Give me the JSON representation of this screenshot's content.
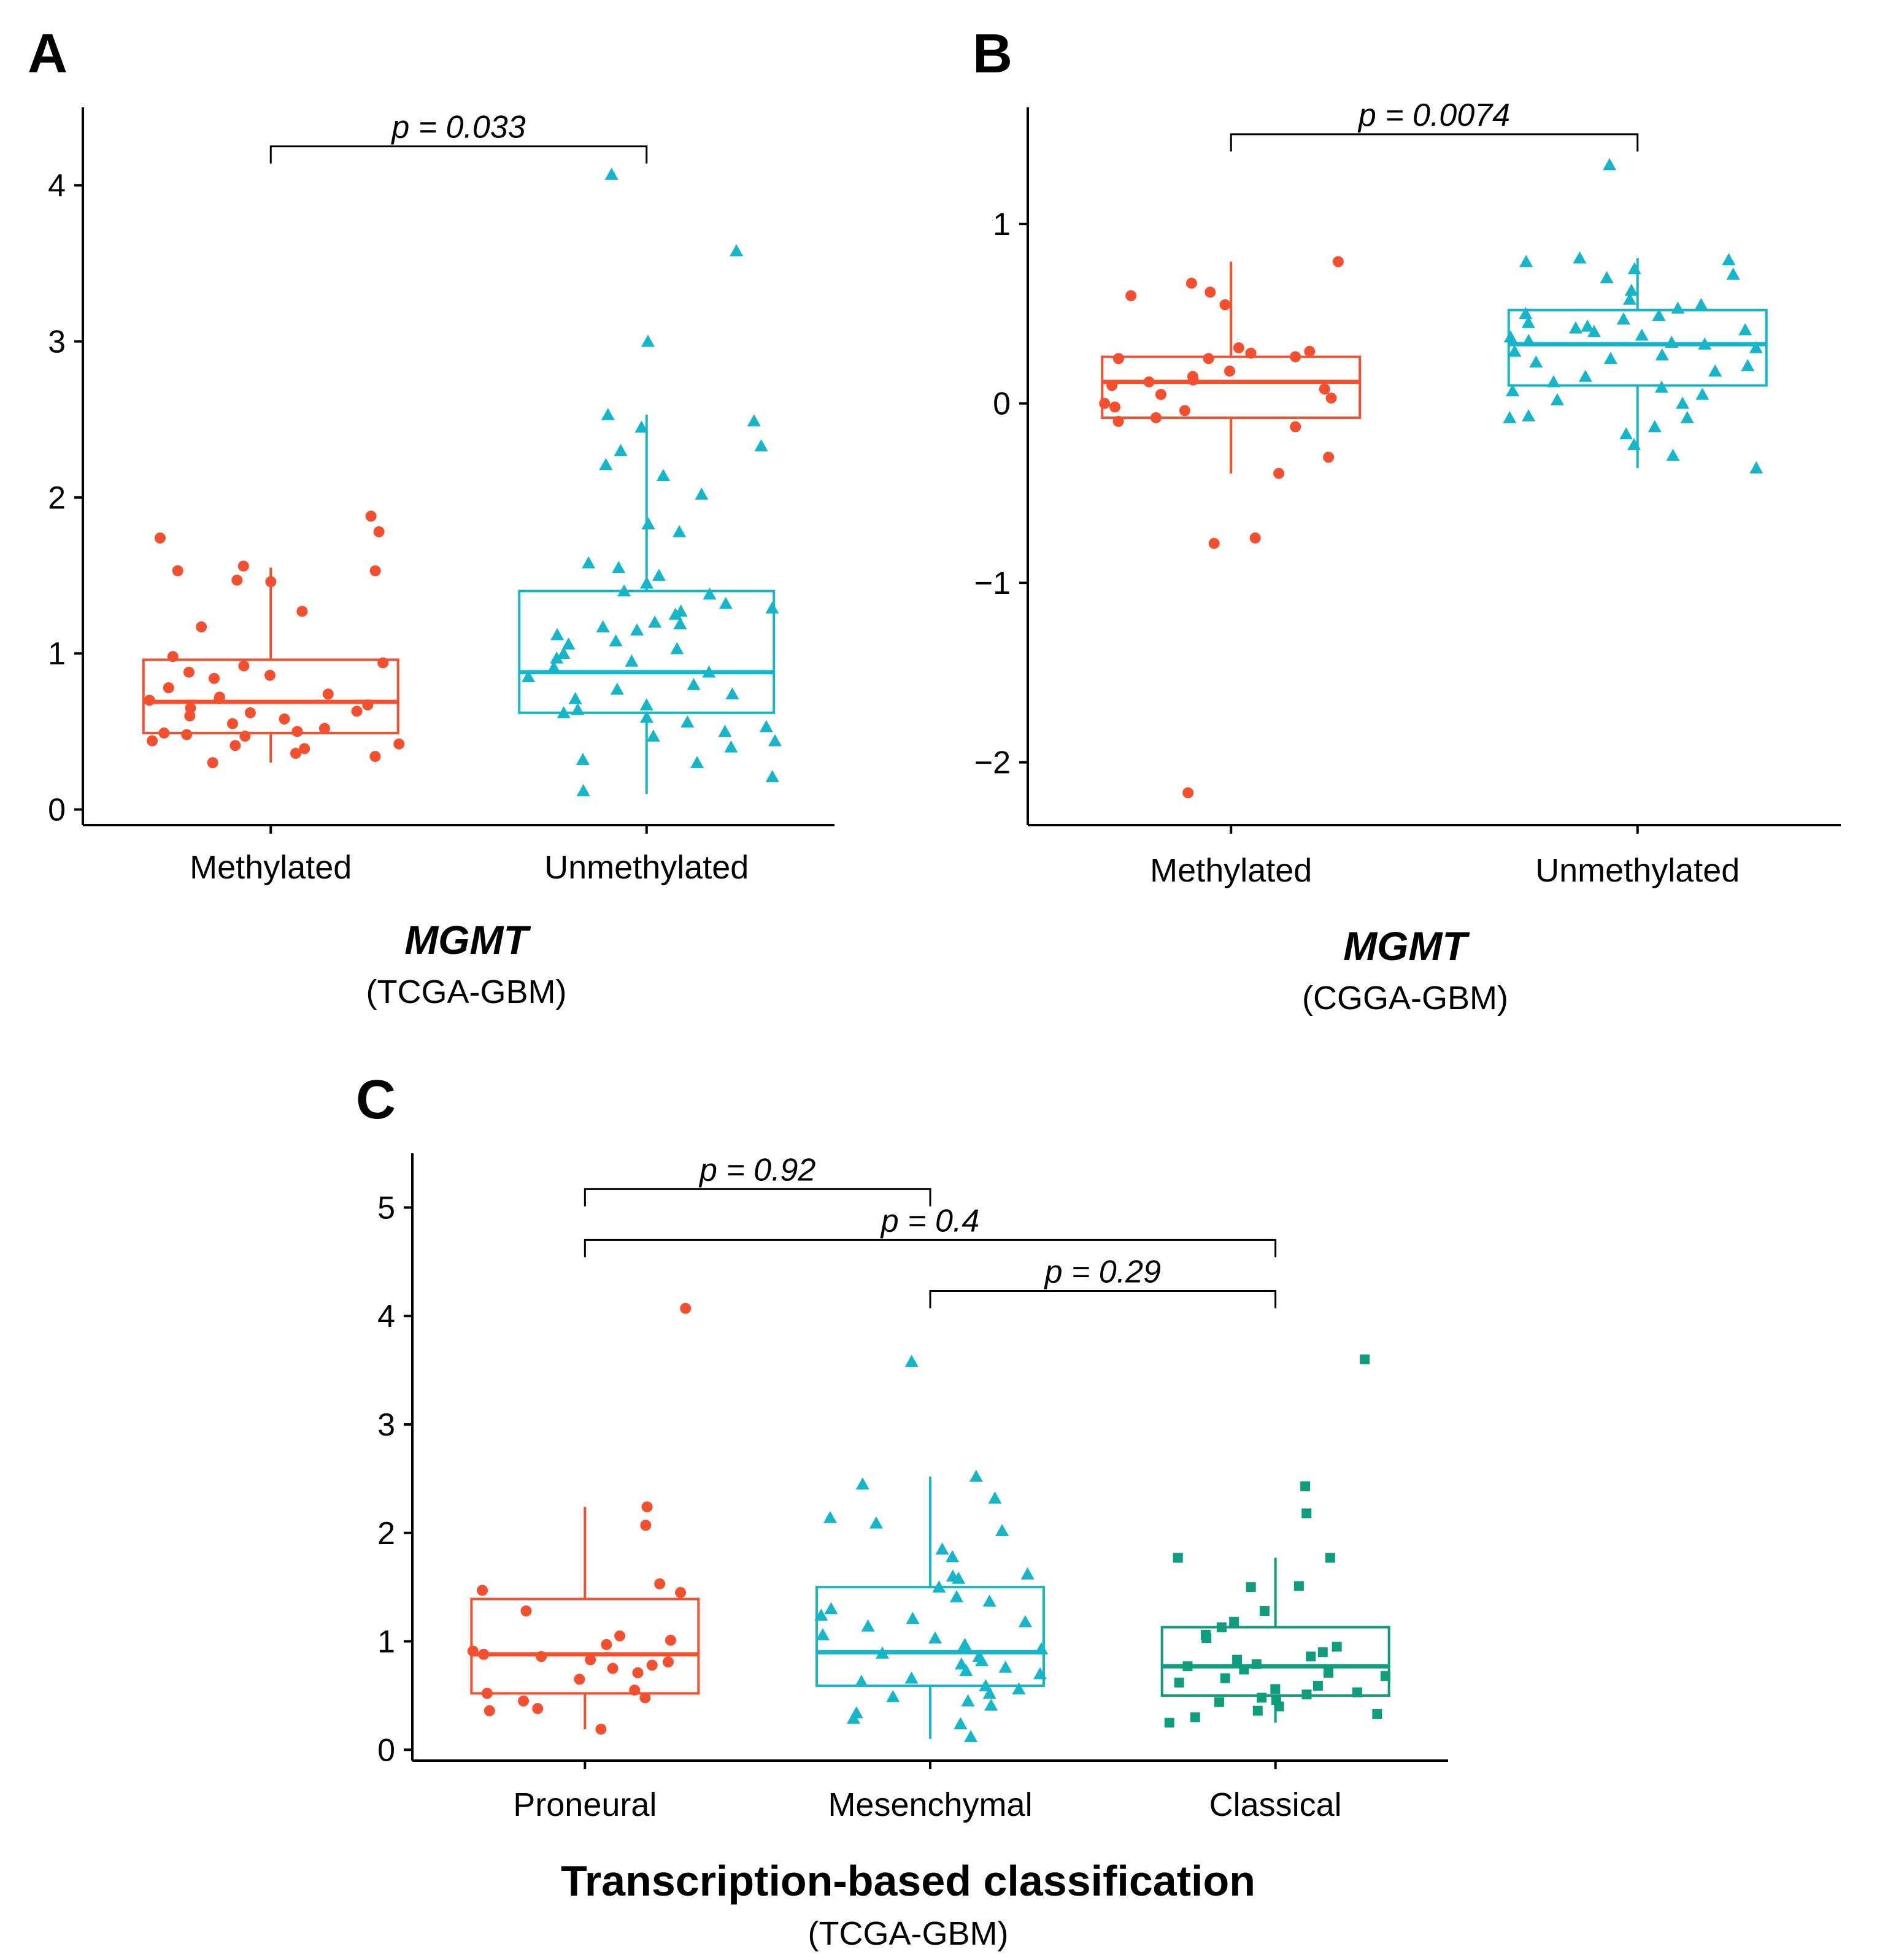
{
  "figure": {
    "panels": [
      "A",
      "B",
      "C"
    ],
    "colors": {
      "red": "#F4502F",
      "cyan": "#15B6C9",
      "teal": "#0E9E7E",
      "axis": "#000000"
    }
  },
  "chart_data": [
    {
      "id": "A",
      "panel_label": "A",
      "type": "box",
      "title_italic": "MGMT",
      "subtitle": "(TCGA-GBM)",
      "xlabel": "",
      "ylabel": "",
      "categories": [
        "Methylated",
        "Unmethylated"
      ],
      "ylim": [
        -0.1,
        4.5
      ],
      "yticks": [
        0,
        1,
        2,
        3,
        4
      ],
      "colors": [
        "#F4502F",
        "#15B6C9"
      ],
      "shapes": [
        "circle",
        "triangle"
      ],
      "boxes": [
        {
          "category": "Methylated",
          "q1": 0.49,
          "median": 0.69,
          "q3": 0.96,
          "whisker_low": 0.3,
          "whisker_high": 1.55
        },
        {
          "category": "Unmethylated",
          "q1": 0.62,
          "median": 0.88,
          "q3": 1.4,
          "whisker_low": 0.1,
          "whisker_high": 2.53
        }
      ],
      "points": [
        [
          1.88,
          1.78,
          1.74,
          1.56,
          1.53,
          1.53,
          1.47,
          1.46,
          1.27,
          1.17,
          0.98,
          0.94,
          0.92,
          0.88,
          0.86,
          0.84,
          0.78,
          0.74,
          0.72,
          0.71,
          0.7,
          0.67,
          0.65,
          0.63,
          0.62,
          0.6,
          0.58,
          0.55,
          0.52,
          0.5,
          0.49,
          0.48,
          0.47,
          0.44,
          0.42,
          0.41,
          0.39,
          0.36,
          0.34,
          0.3
        ],
        [
          4.07,
          3.58,
          3.0,
          2.53,
          2.49,
          2.45,
          2.33,
          2.3,
          2.21,
          2.14,
          2.02,
          1.83,
          1.78,
          1.58,
          1.55,
          1.5,
          1.45,
          1.4,
          1.38,
          1.32,
          1.29,
          1.27,
          1.25,
          1.2,
          1.19,
          1.17,
          1.15,
          1.12,
          1.08,
          1.06,
          1.03,
          1.0,
          0.97,
          0.95,
          0.91,
          0.88,
          0.85,
          0.8,
          0.77,
          0.74,
          0.71,
          0.67,
          0.64,
          0.62,
          0.59,
          0.56,
          0.53,
          0.5,
          0.47,
          0.44,
          0.4,
          0.32,
          0.3,
          0.21,
          0.12
        ]
      ],
      "comparisons": [
        {
          "from": 0,
          "to": 1,
          "y": 4.25,
          "label": "p = 0.033"
        }
      ]
    },
    {
      "id": "B",
      "panel_label": "B",
      "type": "box",
      "title_italic": "MGMT",
      "subtitle": "(CGGA-GBM)",
      "xlabel": "",
      "ylabel": "",
      "categories": [
        "Methylated",
        "Unmethylated"
      ],
      "ylim": [
        -2.35,
        1.65
      ],
      "yticks": [
        -2,
        -1,
        0,
        1
      ],
      "ytick_labels": [
        "−2",
        "−1",
        "0",
        "1"
      ],
      "colors": [
        "#F4502F",
        "#15B6C9"
      ],
      "shapes": [
        "circle",
        "triangle"
      ],
      "boxes": [
        {
          "category": "Methylated",
          "q1": -0.08,
          "median": 0.12,
          "q3": 0.26,
          "whisker_low": -0.39,
          "whisker_high": 0.79
        },
        {
          "category": "Unmethylated",
          "q1": 0.1,
          "median": 0.33,
          "q3": 0.52,
          "whisker_low": -0.36,
          "whisker_high": 0.81
        }
      ],
      "points": [
        [
          0.79,
          0.67,
          0.62,
          0.6,
          0.55,
          0.31,
          0.29,
          0.28,
          0.26,
          0.25,
          0.25,
          0.18,
          0.15,
          0.13,
          0.12,
          0.1,
          0.08,
          0.05,
          0.03,
          0.0,
          -0.02,
          -0.04,
          -0.08,
          -0.1,
          -0.13,
          -0.3,
          -0.39,
          -0.75,
          -0.78,
          -2.17
        ],
        [
          1.33,
          0.81,
          0.8,
          0.79,
          0.75,
          0.72,
          0.7,
          0.63,
          0.58,
          0.55,
          0.53,
          0.5,
          0.49,
          0.47,
          0.45,
          0.43,
          0.42,
          0.41,
          0.4,
          0.38,
          0.37,
          0.35,
          0.34,
          0.33,
          0.31,
          0.29,
          0.27,
          0.25,
          0.23,
          0.21,
          0.18,
          0.15,
          0.12,
          0.09,
          0.07,
          0.05,
          0.02,
          0.0,
          -0.07,
          -0.08,
          -0.08,
          -0.13,
          -0.17,
          -0.23,
          -0.29,
          -0.36
        ]
      ],
      "comparisons": [
        {
          "from": 0,
          "to": 1,
          "y": 1.5,
          "label": "p = 0.0074"
        }
      ]
    },
    {
      "id": "C",
      "panel_label": "C",
      "type": "box",
      "title": "Transcription-based classification",
      "subtitle": "(TCGA-GBM)",
      "xlabel": "",
      "ylabel": "",
      "categories": [
        "Proneural",
        "Mesenchymal",
        "Classical"
      ],
      "ylim": [
        -0.1,
        5.5
      ],
      "yticks": [
        0,
        1,
        2,
        3,
        4,
        5
      ],
      "colors": [
        "#F4502F",
        "#15B6C9",
        "#0E9E7E"
      ],
      "shapes": [
        "circle",
        "triangle",
        "square"
      ],
      "boxes": [
        {
          "category": "Proneural",
          "q1": 0.52,
          "median": 0.88,
          "q3": 1.39,
          "whisker_low": 0.19,
          "whisker_high": 2.24
        },
        {
          "category": "Mesenchymal",
          "q1": 0.59,
          "median": 0.9,
          "q3": 1.5,
          "whisker_low": 0.1,
          "whisker_high": 2.52
        },
        {
          "category": "Classical",
          "q1": 0.5,
          "median": 0.77,
          "q3": 1.13,
          "whisker_low": 0.25,
          "whisker_high": 1.77
        }
      ],
      "points": [
        [
          4.07,
          2.24,
          2.07,
          1.53,
          1.47,
          1.45,
          1.28,
          1.05,
          1.01,
          0.97,
          0.91,
          0.88,
          0.86,
          0.83,
          0.81,
          0.78,
          0.75,
          0.71,
          0.65,
          0.55,
          0.52,
          0.48,
          0.45,
          0.38,
          0.36,
          0.19
        ],
        [
          3.58,
          2.52,
          2.45,
          2.32,
          2.14,
          2.09,
          2.02,
          1.85,
          1.78,
          1.62,
          1.6,
          1.58,
          1.5,
          1.41,
          1.37,
          1.3,
          1.24,
          1.21,
          1.18,
          1.14,
          1.06,
          1.03,
          0.97,
          0.93,
          0.89,
          0.86,
          0.82,
          0.79,
          0.76,
          0.73,
          0.7,
          0.66,
          0.63,
          0.59,
          0.56,
          0.52,
          0.49,
          0.45,
          0.41,
          0.34,
          0.29,
          0.24,
          0.12
        ],
        [
          3.6,
          2.43,
          2.18,
          1.77,
          1.77,
          1.51,
          1.5,
          1.28,
          1.18,
          1.13,
          1.06,
          1.03,
          0.95,
          0.9,
          0.86,
          0.83,
          0.79,
          0.77,
          0.74,
          0.71,
          0.68,
          0.66,
          0.62,
          0.59,
          0.56,
          0.53,
          0.51,
          0.48,
          0.46,
          0.44,
          0.4,
          0.36,
          0.33,
          0.3,
          0.25
        ]
      ],
      "comparisons": [
        {
          "from": 0,
          "to": 1,
          "y": 5.17,
          "label": "p = 0.92"
        },
        {
          "from": 0,
          "to": 2,
          "y": 4.7,
          "label": "p = 0.4"
        },
        {
          "from": 1,
          "to": 2,
          "y": 4.23,
          "label": "p = 0.29"
        }
      ]
    }
  ]
}
